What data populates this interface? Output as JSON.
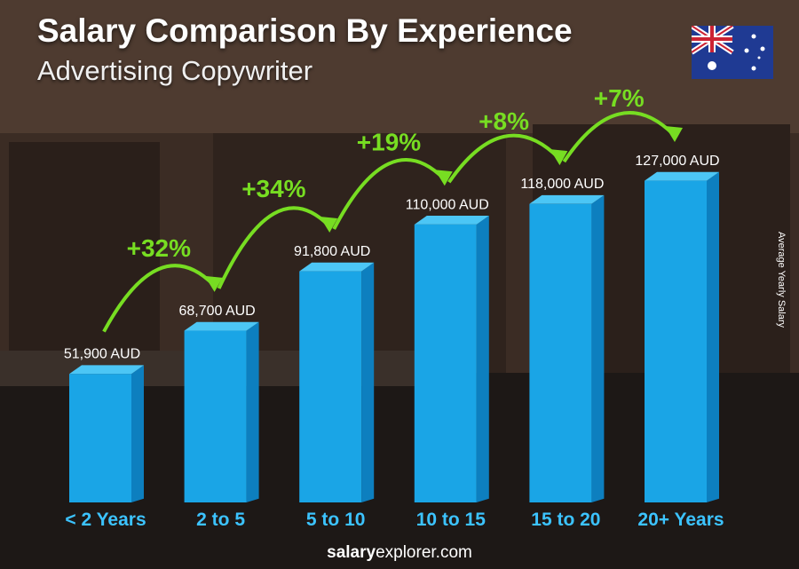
{
  "header": {
    "title": "Salary Comparison By Experience",
    "subtitle": "Advertising Copywriter"
  },
  "footer": {
    "brand_bold": "salary",
    "brand_rest": "explorer.com"
  },
  "colors": {
    "bar_front": "#1aa5e6",
    "bar_side": "#0d7fbf",
    "bar_top": "#4cc6f5",
    "increase": "#77dd22",
    "category": "#3cc3ff"
  },
  "chart_data": {
    "type": "bar",
    "categories": [
      "< 2 Years",
      "2 to 5",
      "5 to 10",
      "10 to 15",
      "15 to 20",
      "20+ Years"
    ],
    "values": [
      51900,
      68700,
      91800,
      110000,
      118000,
      127000
    ],
    "value_labels": [
      "51,900 AUD",
      "68,700 AUD",
      "91,800 AUD",
      "110,000 AUD",
      "118,000 AUD",
      "127,000 AUD"
    ],
    "increases": [
      "+32%",
      "+34%",
      "+19%",
      "+8%",
      "+7%"
    ],
    "ylabel": "Average Yearly Salary",
    "ylim": [
      0,
      127000
    ]
  }
}
